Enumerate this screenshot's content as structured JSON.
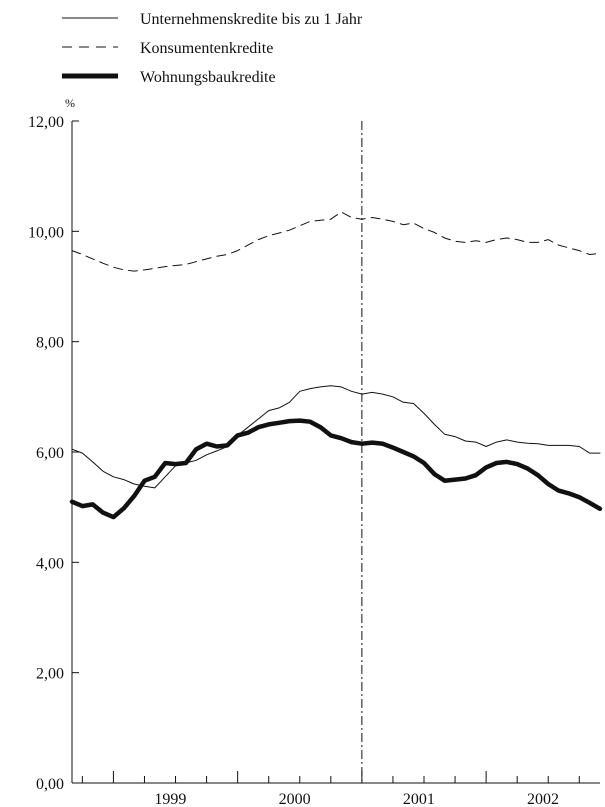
{
  "chart_data": {
    "type": "line",
    "title": "",
    "xlabel": "",
    "ylabel": "%",
    "ylim": [
      0,
      12
    ],
    "y_ticks": [
      "0,00",
      "2,00",
      "4,00",
      "6,00",
      "8,00",
      "10,00",
      "12,00"
    ],
    "x_tick_labels": [
      "1999",
      "2000",
      "2001",
      "2002"
    ],
    "x_range": [
      "1998-09",
      "2002-12"
    ],
    "grid": false,
    "legend_position": "top-left",
    "vertical_marker": "2001-01",
    "series": [
      {
        "name": "Unternehmenskredite bis zu 1 Jahr",
        "style": "thin-solid",
        "color": "#111111",
        "x": [
          "1998-09",
          "1998-10",
          "1998-11",
          "1998-12",
          "1999-01",
          "1999-02",
          "1999-03",
          "1999-04",
          "1999-05",
          "1999-06",
          "1999-07",
          "1999-08",
          "1999-09",
          "1999-10",
          "1999-11",
          "1999-12",
          "2000-01",
          "2000-02",
          "2000-03",
          "2000-04",
          "2000-05",
          "2000-06",
          "2000-07",
          "2000-08",
          "2000-09",
          "2000-10",
          "2000-11",
          "2000-12",
          "2001-01",
          "2001-02",
          "2001-03",
          "2001-04",
          "2001-05",
          "2001-06",
          "2001-07",
          "2001-08",
          "2001-09",
          "2001-10",
          "2001-11",
          "2001-12",
          "2002-01",
          "2002-02",
          "2002-03",
          "2002-04",
          "2002-05",
          "2002-06",
          "2002-07",
          "2002-08",
          "2002-09",
          "2002-10",
          "2002-11",
          "2002-12"
        ],
        "values": [
          6.05,
          5.98,
          5.82,
          5.65,
          5.55,
          5.5,
          5.42,
          5.38,
          5.35,
          5.55,
          5.75,
          5.8,
          5.85,
          5.95,
          6.02,
          6.1,
          6.3,
          6.45,
          6.6,
          6.75,
          6.8,
          6.9,
          7.1,
          7.15,
          7.18,
          7.2,
          7.18,
          7.1,
          7.05,
          7.08,
          7.05,
          7.0,
          6.9,
          6.88,
          6.7,
          6.5,
          6.32,
          6.28,
          6.2,
          6.18,
          6.1,
          6.18,
          6.22,
          6.18,
          6.16,
          6.15,
          6.12,
          6.12,
          6.12,
          6.1,
          5.98,
          5.98
        ]
      },
      {
        "name": "Konsumentenkredite",
        "style": "dashed",
        "color": "#111111",
        "x": [
          "1998-09",
          "1998-10",
          "1998-11",
          "1998-12",
          "1999-01",
          "1999-02",
          "1999-03",
          "1999-04",
          "1999-05",
          "1999-06",
          "1999-07",
          "1999-08",
          "1999-09",
          "1999-10",
          "1999-11",
          "1999-12",
          "2000-01",
          "2000-02",
          "2000-03",
          "2000-04",
          "2000-05",
          "2000-06",
          "2000-07",
          "2000-08",
          "2000-09",
          "2000-10",
          "2000-11",
          "2000-12",
          "2001-01",
          "2001-02",
          "2001-03",
          "2001-04",
          "2001-05",
          "2001-06",
          "2001-07",
          "2001-08",
          "2001-09",
          "2001-10",
          "2001-11",
          "2001-12",
          "2002-01",
          "2002-02",
          "2002-03",
          "2002-04",
          "2002-05",
          "2002-06",
          "2002-07",
          "2002-08",
          "2002-09",
          "2002-10",
          "2002-11",
          "2002-12"
        ],
        "values": [
          9.65,
          9.58,
          9.5,
          9.42,
          9.35,
          9.3,
          9.28,
          9.3,
          9.33,
          9.36,
          9.38,
          9.4,
          9.45,
          9.5,
          9.55,
          9.58,
          9.65,
          9.75,
          9.85,
          9.92,
          9.97,
          10.02,
          10.1,
          10.18,
          10.2,
          10.22,
          10.35,
          10.25,
          10.22,
          10.25,
          10.22,
          10.18,
          10.12,
          10.15,
          10.05,
          9.98,
          9.88,
          9.82,
          9.8,
          9.83,
          9.8,
          9.85,
          9.88,
          9.85,
          9.8,
          9.8,
          9.85,
          9.75,
          9.7,
          9.65,
          9.58,
          9.6
        ]
      },
      {
        "name": "Wohnungsbaukredite",
        "style": "thick-solid",
        "color": "#111111",
        "x": [
          "1998-09",
          "1998-10",
          "1998-11",
          "1998-12",
          "1999-01",
          "1999-02",
          "1999-03",
          "1999-04",
          "1999-05",
          "1999-06",
          "1999-07",
          "1999-08",
          "1999-09",
          "1999-10",
          "1999-11",
          "1999-12",
          "2000-01",
          "2000-02",
          "2000-03",
          "2000-04",
          "2000-05",
          "2000-06",
          "2000-07",
          "2000-08",
          "2000-09",
          "2000-10",
          "2000-11",
          "2000-12",
          "2001-01",
          "2001-02",
          "2001-03",
          "2001-04",
          "2001-05",
          "2001-06",
          "2001-07",
          "2001-08",
          "2001-09",
          "2001-10",
          "2001-11",
          "2001-12",
          "2002-01",
          "2002-02",
          "2002-03",
          "2002-04",
          "2002-05",
          "2002-06",
          "2002-07",
          "2002-08",
          "2002-09",
          "2002-10",
          "2002-11",
          "2002-12"
        ],
        "values": [
          5.1,
          5.02,
          5.05,
          4.9,
          4.82,
          4.98,
          5.2,
          5.48,
          5.55,
          5.8,
          5.78,
          5.8,
          6.05,
          6.15,
          6.1,
          6.12,
          6.3,
          6.35,
          6.45,
          6.5,
          6.53,
          6.56,
          6.57,
          6.55,
          6.45,
          6.3,
          6.25,
          6.18,
          6.15,
          6.17,
          6.15,
          6.08,
          6.0,
          5.92,
          5.8,
          5.6,
          5.48,
          5.5,
          5.52,
          5.58,
          5.72,
          5.8,
          5.82,
          5.78,
          5.7,
          5.58,
          5.42,
          5.3,
          5.25,
          5.18,
          5.08,
          4.97
        ]
      }
    ]
  }
}
